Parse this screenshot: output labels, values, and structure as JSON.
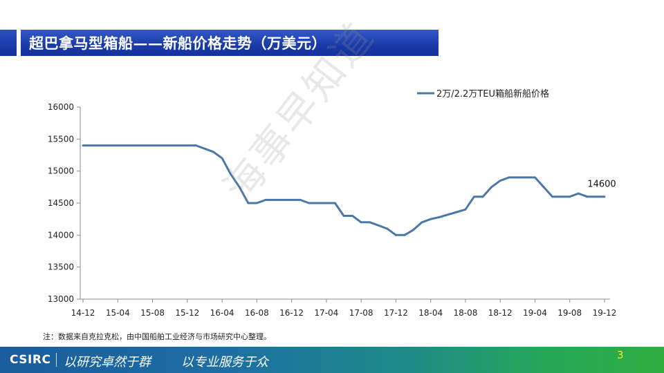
{
  "header": {
    "title": "超巴拿马型箱船——新船价格走势（万美元）"
  },
  "watermark": "海事早知道",
  "note": "注：数据来自克拉克松，由中国船舶工业经济与市场研究中心整理。",
  "footer": {
    "logo": "CSIRC",
    "slogan_1": "以研究卓然于群",
    "slogan_2": "以专业服务于众",
    "page_number": "3"
  },
  "colors": {
    "line": "#4a77a8",
    "title_bar": "#1f3fae",
    "page_number": "#f2ea3a"
  },
  "chart_data": {
    "type": "line",
    "title": "",
    "xlabel": "",
    "ylabel": "",
    "ylim": [
      13000,
      16000
    ],
    "yticks": [
      13000,
      13500,
      14000,
      14500,
      15000,
      15500,
      16000
    ],
    "xtick_labels": [
      "14-12",
      "15-04",
      "15-08",
      "15-12",
      "16-04",
      "16-08",
      "16-12",
      "17-04",
      "17-08",
      "17-12",
      "18-04",
      "18-08",
      "18-12",
      "19-04",
      "19-08",
      "19-12"
    ],
    "x": [
      "14-12",
      "15-01",
      "15-02",
      "15-03",
      "15-04",
      "15-05",
      "15-06",
      "15-07",
      "15-08",
      "15-09",
      "15-10",
      "15-11",
      "15-12",
      "16-01",
      "16-02",
      "16-03",
      "16-04",
      "16-05",
      "16-06",
      "16-07",
      "16-08",
      "16-09",
      "16-10",
      "16-11",
      "16-12",
      "17-01",
      "17-02",
      "17-03",
      "17-04",
      "17-05",
      "17-06",
      "17-07",
      "17-08",
      "17-09",
      "17-10",
      "17-11",
      "17-12",
      "18-01",
      "18-02",
      "18-03",
      "18-04",
      "18-05",
      "18-06",
      "18-07",
      "18-08",
      "18-09",
      "18-10",
      "18-11",
      "18-12",
      "19-01",
      "19-02",
      "19-03",
      "19-04",
      "19-05",
      "19-06",
      "19-07",
      "19-08",
      "19-09",
      "19-10",
      "19-11",
      "19-12"
    ],
    "series": [
      {
        "name": "2万/2.2万TEU箱船新船价格",
        "values": [
          15400,
          15400,
          15400,
          15400,
          15400,
          15400,
          15400,
          15400,
          15400,
          15400,
          15400,
          15400,
          15400,
          15400,
          15350,
          15300,
          15200,
          14950,
          14750,
          14500,
          14500,
          14550,
          14550,
          14550,
          14550,
          14550,
          14500,
          14500,
          14500,
          14500,
          14300,
          14300,
          14200,
          14200,
          14150,
          14100,
          14000,
          14000,
          14080,
          14200,
          14250,
          14280,
          14320,
          14360,
          14400,
          14600,
          14600,
          14750,
          14850,
          14900,
          14900,
          14900,
          14900,
          14750,
          14600,
          14600,
          14600,
          14650,
          14600,
          14600,
          14600
        ]
      }
    ],
    "annotations": [
      {
        "text": "14600",
        "x": "19-12",
        "y": 14600
      }
    ],
    "legend": "top-right",
    "grid": false
  }
}
